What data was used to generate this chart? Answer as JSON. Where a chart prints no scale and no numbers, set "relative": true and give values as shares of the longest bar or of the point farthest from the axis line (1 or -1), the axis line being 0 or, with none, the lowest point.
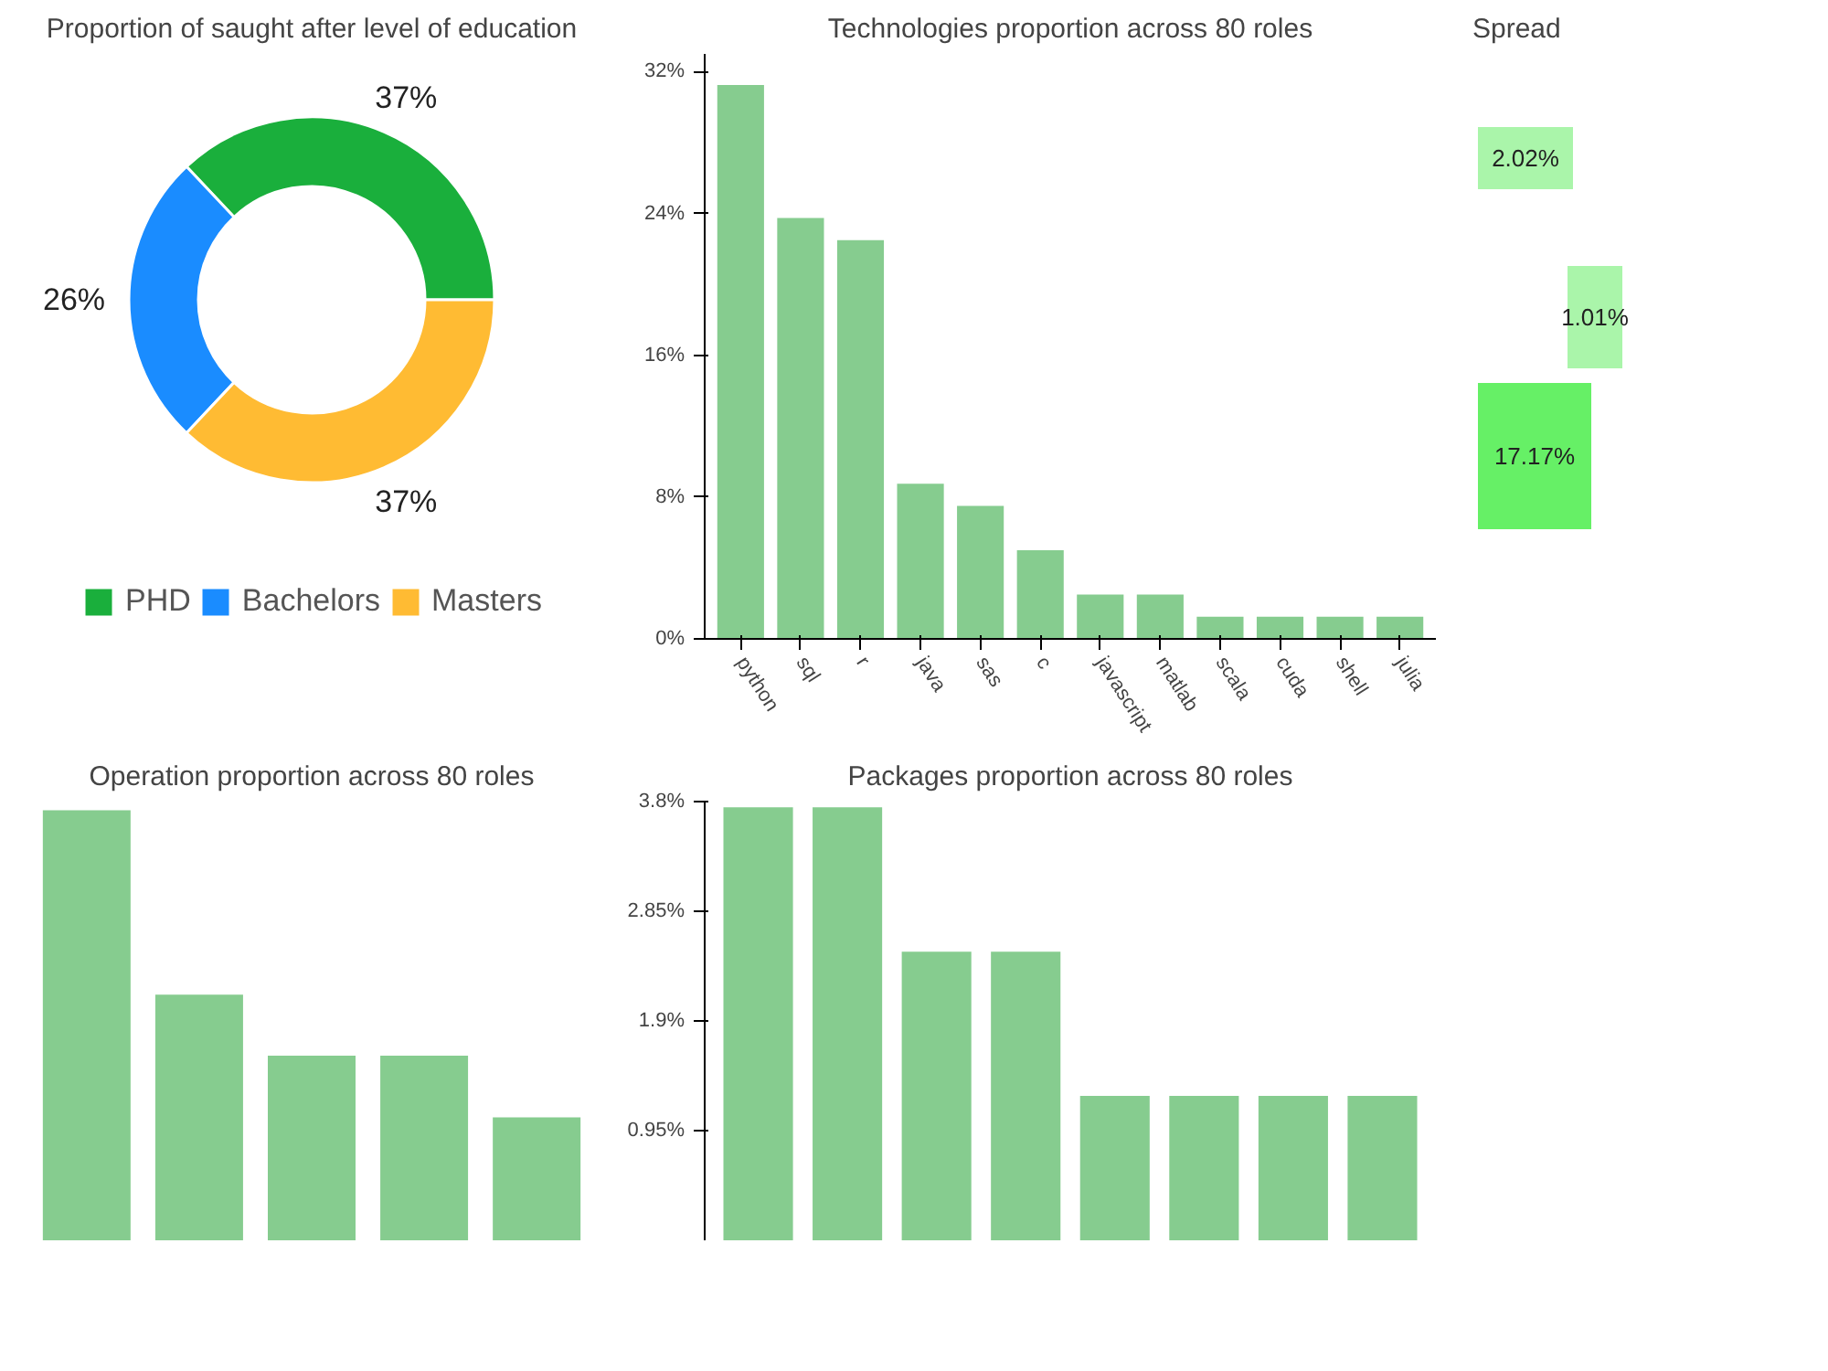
{
  "chart_data": [
    {
      "type": "donut",
      "title": "Proportion of saught after level of education",
      "categories": [
        "PHD",
        "Bachelors",
        "Masters"
      ],
      "values": [
        37,
        26,
        37
      ],
      "colors": [
        "#1aaf3c",
        "#1a8cff",
        "#ffbb33"
      ],
      "value_labels": [
        "37%",
        "26%",
        "37%"
      ],
      "legend": "bottom"
    },
    {
      "type": "bar",
      "title": "Technologies proportion across 80 roles",
      "categories": [
        "python",
        "sql",
        "r",
        "java",
        "sas",
        "c",
        "javascript",
        "matlab",
        "scala",
        "cuda",
        "shell",
        "julia"
      ],
      "values": [
        31.25,
        23.75,
        22.5,
        8.75,
        7.5,
        5,
        2.5,
        2.5,
        1.25,
        1.25,
        1.25,
        1.25
      ],
      "color": "#86cc8f",
      "ylim": [
        0,
        33
      ],
      "yticks": [
        {
          "value": 0,
          "label": "0%"
        },
        {
          "value": 8,
          "label": "8%"
        },
        {
          "value": 16,
          "label": "16%"
        },
        {
          "value": 24,
          "label": "24%"
        },
        {
          "value": 32,
          "label": "32%"
        }
      ],
      "grid": false
    },
    {
      "type": "other",
      "title": "Spread",
      "categories": [
        null,
        null,
        null
      ],
      "values": [
        2.02,
        1.01,
        17.17
      ],
      "colors": [
        "#aaf5aa",
        "#aaf5aa",
        "#66f066"
      ],
      "value_labels": [
        "2.02%",
        "1.01%",
        "17.17%"
      ]
    },
    {
      "type": "bar",
      "title": "Operation proportion across 80 roles",
      "categories": [
        null,
        null,
        null,
        null,
        null
      ],
      "values": [
        1,
        0.571,
        0.429,
        0.429,
        0.286
      ],
      "color": "#86cc8f",
      "relative": true,
      "grid": false
    },
    {
      "type": "bar",
      "title": "Packages proportion across 80 roles",
      "categories": [
        null,
        null,
        null,
        null,
        null,
        null,
        null,
        null
      ],
      "values": [
        3.75,
        3.75,
        2.5,
        2.5,
        1.25,
        1.25,
        1.25,
        1.25
      ],
      "color": "#86cc8f",
      "ylim": [
        0,
        3.8
      ],
      "yticks": [
        {
          "value": 0.95,
          "label": "0.95%"
        },
        {
          "value": 1.9,
          "label": "1.9%"
        },
        {
          "value": 2.85,
          "label": "2.85%"
        },
        {
          "value": 3.8,
          "label": "3.8%"
        }
      ],
      "grid": false
    }
  ]
}
